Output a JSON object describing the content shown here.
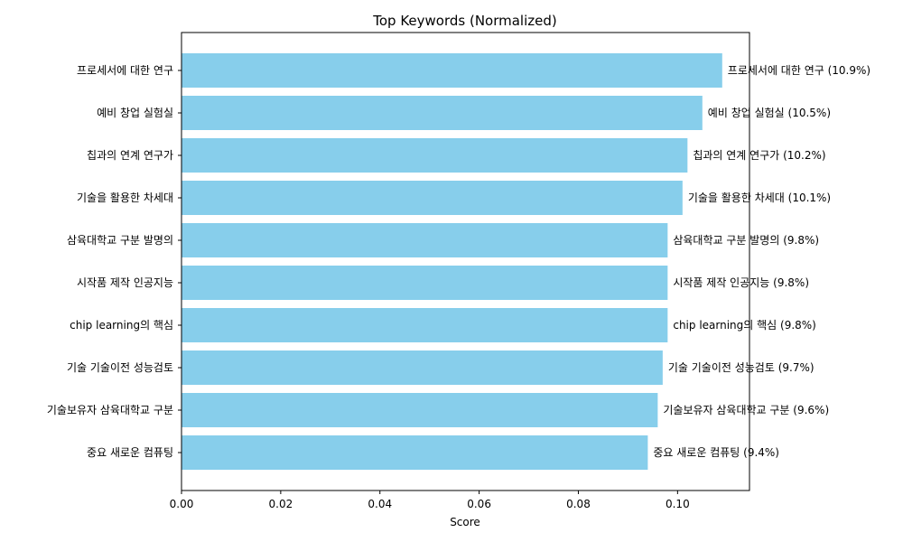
{
  "chart_data": {
    "type": "bar",
    "orientation": "horizontal",
    "title": "Top Keywords (Normalized)",
    "xlabel": "Score",
    "ylabel": "",
    "xlim": [
      0,
      0.1145
    ],
    "xticks": [
      0.0,
      0.02,
      0.04,
      0.06,
      0.08,
      0.1
    ],
    "xtick_labels": [
      "0.00",
      "0.02",
      "0.04",
      "0.06",
      "0.08",
      "0.10"
    ],
    "grid": false,
    "bar_color": "#87ceeb",
    "categories": [
      "프로세서에 대한 연구",
      "예비 창업 실험실",
      "칩과의 연계 연구가",
      "기술을 활용한 차세대",
      "삼육대학교 구분 발명의",
      "시작품 제작 인공지능",
      "chip learning의 핵심",
      "기술 기술이전 성능검토",
      "기술보유자 삼육대학교 구분",
      "중요 새로운 컴퓨팅"
    ],
    "values": [
      0.109,
      0.105,
      0.102,
      0.101,
      0.098,
      0.098,
      0.098,
      0.097,
      0.096,
      0.094
    ],
    "data_labels": [
      "프로세서에 대한 연구 (10.9%)",
      "예비 창업 실험실 (10.5%)",
      "칩과의 연계 연구가 (10.2%)",
      "기술을 활용한 차세대 (10.1%)",
      "삼육대학교 구분 발명의 (9.8%)",
      "시작품 제작 인공지능 (9.8%)",
      "chip learning의 핵심 (9.8%)",
      "기술 기술이전 성능검토 (9.7%)",
      "기술보유자 삼육대학교 구분 (9.6%)",
      "중요 새로운 컴퓨팅 (9.4%)"
    ]
  }
}
